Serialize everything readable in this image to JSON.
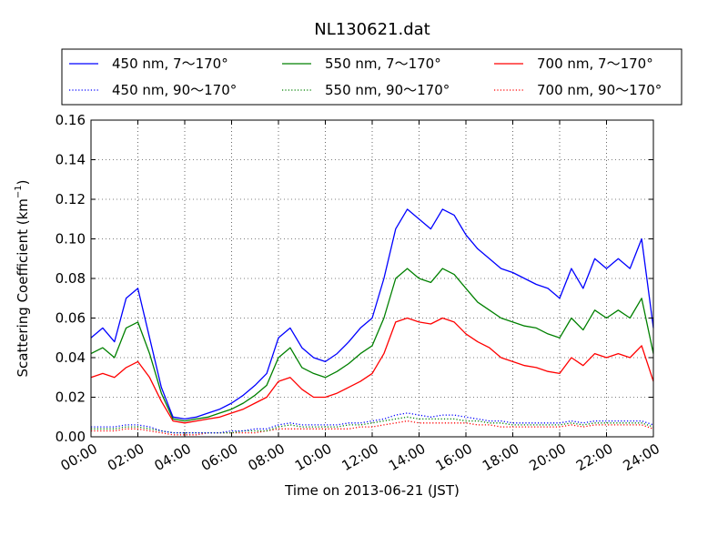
{
  "chart_data": {
    "type": "line",
    "title": "NL130621.dat",
    "xlabel": "Time on 2013-06-21 (JST)",
    "ylabel_main": "Scattering Coefficient (km",
    "ylabel_sup": "−1",
    "ylabel_close": ")",
    "xlim": [
      0,
      24
    ],
    "ylim": [
      0,
      0.16
    ],
    "xticks": [
      0,
      2,
      4,
      6,
      8,
      10,
      12,
      14,
      16,
      18,
      20,
      22,
      24
    ],
    "xtick_labels": [
      "00:00",
      "02:00",
      "04:00",
      "06:00",
      "08:00",
      "10:00",
      "12:00",
      "14:00",
      "16:00",
      "18:00",
      "20:00",
      "22:00",
      "24:00"
    ],
    "yticks": [
      0,
      0.02,
      0.04,
      0.06,
      0.08,
      0.1,
      0.12,
      0.14,
      0.16
    ],
    "ytick_labels": [
      "0.00",
      "0.02",
      "0.04",
      "0.06",
      "0.08",
      "0.10",
      "0.12",
      "0.14",
      "0.16"
    ],
    "grid": true,
    "legend_position": "top",
    "colors": {
      "blue": "#0000ff",
      "green": "#008000",
      "red": "#ff0000"
    },
    "x": [
      0.0,
      0.5,
      1.0,
      1.5,
      2.0,
      2.5,
      3.0,
      3.5,
      4.0,
      4.5,
      5.0,
      5.5,
      6.0,
      6.5,
      7.0,
      7.5,
      8.0,
      8.5,
      9.0,
      9.5,
      10.0,
      10.5,
      11.0,
      11.5,
      12.0,
      12.5,
      13.0,
      13.5,
      14.0,
      14.5,
      15.0,
      15.5,
      16.0,
      16.5,
      17.0,
      17.5,
      18.0,
      18.5,
      19.0,
      19.5,
      20.0,
      20.5,
      21.0,
      21.5,
      22.0,
      22.5,
      23.0,
      23.5,
      24.0
    ],
    "series": [
      {
        "name": "450 nm, 7～170°",
        "color": "#0000ff",
        "style": "solid",
        "values": [
          0.05,
          0.055,
          0.048,
          0.07,
          0.075,
          0.05,
          0.025,
          0.01,
          0.009,
          0.01,
          0.012,
          0.014,
          0.017,
          0.021,
          0.026,
          0.032,
          0.05,
          0.055,
          0.045,
          0.04,
          0.038,
          0.042,
          0.048,
          0.055,
          0.06,
          0.08,
          0.105,
          0.115,
          0.11,
          0.105,
          0.115,
          0.112,
          0.102,
          0.095,
          0.09,
          0.085,
          0.083,
          0.08,
          0.077,
          0.075,
          0.07,
          0.085,
          0.075,
          0.09,
          0.085,
          0.09,
          0.085,
          0.1,
          0.055
        ]
      },
      {
        "name": "450 nm, 90～170°",
        "color": "#0000ff",
        "style": "dotted",
        "values": [
          0.005,
          0.005,
          0.005,
          0.006,
          0.006,
          0.005,
          0.003,
          0.002,
          0.002,
          0.002,
          0.002,
          0.002,
          0.003,
          0.003,
          0.004,
          0.004,
          0.006,
          0.007,
          0.006,
          0.006,
          0.006,
          0.006,
          0.007,
          0.007,
          0.008,
          0.009,
          0.011,
          0.012,
          0.011,
          0.01,
          0.011,
          0.011,
          0.01,
          0.009,
          0.008,
          0.008,
          0.007,
          0.007,
          0.007,
          0.007,
          0.007,
          0.008,
          0.007,
          0.008,
          0.008,
          0.008,
          0.008,
          0.008,
          0.006
        ]
      },
      {
        "name": "550 nm, 7～170°",
        "color": "#008000",
        "style": "solid",
        "values": [
          0.042,
          0.045,
          0.04,
          0.055,
          0.058,
          0.042,
          0.022,
          0.009,
          0.008,
          0.009,
          0.01,
          0.012,
          0.014,
          0.017,
          0.021,
          0.026,
          0.04,
          0.045,
          0.035,
          0.032,
          0.03,
          0.033,
          0.037,
          0.042,
          0.046,
          0.06,
          0.08,
          0.085,
          0.08,
          0.078,
          0.085,
          0.082,
          0.075,
          0.068,
          0.064,
          0.06,
          0.058,
          0.056,
          0.055,
          0.052,
          0.05,
          0.06,
          0.054,
          0.064,
          0.06,
          0.064,
          0.06,
          0.07,
          0.042
        ]
      },
      {
        "name": "550 nm, 90～170°",
        "color": "#008000",
        "style": "dotted",
        "values": [
          0.004,
          0.004,
          0.004,
          0.005,
          0.005,
          0.004,
          0.003,
          0.002,
          0.002,
          0.002,
          0.002,
          0.002,
          0.002,
          0.003,
          0.003,
          0.003,
          0.005,
          0.006,
          0.005,
          0.005,
          0.005,
          0.005,
          0.006,
          0.006,
          0.007,
          0.008,
          0.009,
          0.01,
          0.009,
          0.009,
          0.009,
          0.009,
          0.008,
          0.008,
          0.007,
          0.007,
          0.006,
          0.006,
          0.006,
          0.006,
          0.006,
          0.007,
          0.006,
          0.007,
          0.007,
          0.007,
          0.007,
          0.007,
          0.005
        ]
      },
      {
        "name": "700 nm, 7～170°",
        "color": "#ff0000",
        "style": "solid",
        "values": [
          0.03,
          0.032,
          0.03,
          0.035,
          0.038,
          0.03,
          0.018,
          0.008,
          0.007,
          0.008,
          0.009,
          0.01,
          0.012,
          0.014,
          0.017,
          0.02,
          0.028,
          0.03,
          0.024,
          0.02,
          0.02,
          0.022,
          0.025,
          0.028,
          0.032,
          0.042,
          0.058,
          0.06,
          0.058,
          0.057,
          0.06,
          0.058,
          0.052,
          0.048,
          0.045,
          0.04,
          0.038,
          0.036,
          0.035,
          0.033,
          0.032,
          0.04,
          0.036,
          0.042,
          0.04,
          0.042,
          0.04,
          0.046,
          0.028
        ]
      },
      {
        "name": "700 nm, 90～170°",
        "color": "#ff0000",
        "style": "dotted",
        "values": [
          0.003,
          0.003,
          0.003,
          0.004,
          0.004,
          0.003,
          0.002,
          0.001,
          0.001,
          0.001,
          0.002,
          0.002,
          0.002,
          0.002,
          0.002,
          0.003,
          0.004,
          0.004,
          0.004,
          0.004,
          0.004,
          0.004,
          0.004,
          0.005,
          0.005,
          0.006,
          0.007,
          0.008,
          0.007,
          0.007,
          0.007,
          0.007,
          0.007,
          0.006,
          0.006,
          0.005,
          0.005,
          0.005,
          0.005,
          0.005,
          0.005,
          0.006,
          0.005,
          0.006,
          0.006,
          0.006,
          0.006,
          0.006,
          0.004
        ]
      }
    ]
  }
}
